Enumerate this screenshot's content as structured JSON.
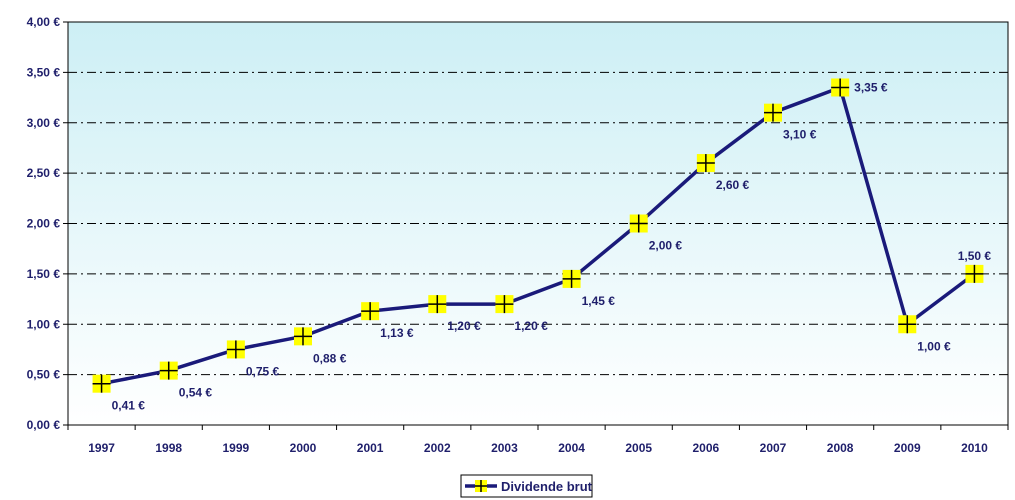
{
  "chart_data": {
    "type": "line",
    "title": "",
    "xlabel": "",
    "ylabel": "",
    "categories": [
      "1997",
      "1998",
      "1999",
      "2000",
      "2001",
      "2002",
      "2003",
      "2004",
      "2005",
      "2006",
      "2007",
      "2008",
      "2009",
      "2010"
    ],
    "series": [
      {
        "name": "Dividende brut",
        "values": [
          0.41,
          0.54,
          0.75,
          0.88,
          1.13,
          1.2,
          1.2,
          1.45,
          2.0,
          2.6,
          3.1,
          3.35,
          1.0,
          1.5
        ],
        "labels": [
          "0,41 €",
          "0,54 €",
          "0,75 €",
          "0,88 €",
          "1,13 €",
          "1,20 €",
          "1,20 €",
          "1,45 €",
          "2,00 €",
          "2,60 €",
          "3,10 €",
          "3,35 €",
          "1,00 €",
          "1,50 €"
        ],
        "color": "#1a1a7a",
        "marker_color": "#ffff00"
      }
    ],
    "ylim": [
      0,
      4
    ],
    "y_ticks": [
      0,
      0.5,
      1,
      1.5,
      2,
      2.5,
      3,
      3.5,
      4
    ],
    "y_tick_labels": [
      "0,00 €",
      "0,50 €",
      "1,00 €",
      "1,50 €",
      "2,00 €",
      "2,50 €",
      "3,00 €",
      "3,50 €",
      "4,00 €"
    ],
    "grid": true,
    "legend_position": "bottom-center",
    "background_gradient": [
      "#cdeff5",
      "#ffffff"
    ]
  }
}
